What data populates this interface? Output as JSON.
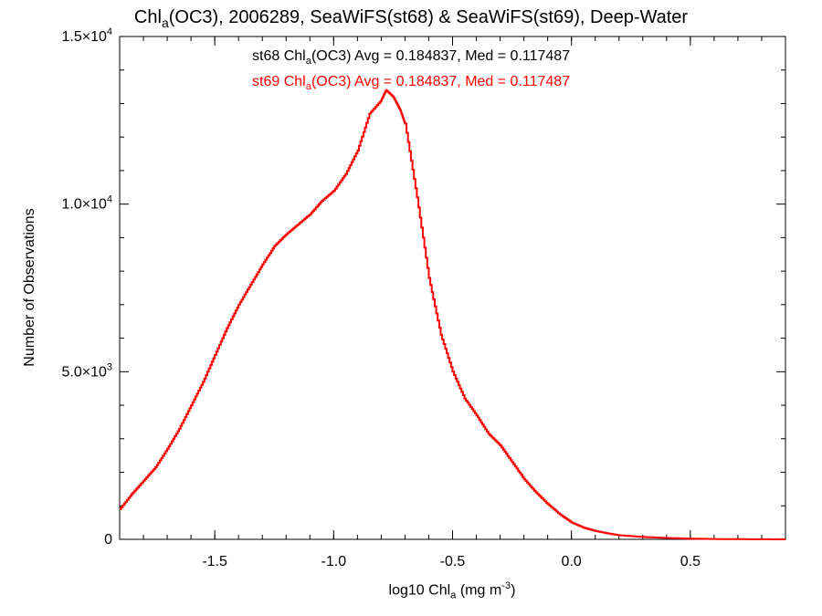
{
  "title": {
    "prefix": "Chl",
    "sub": "a",
    "rest": "(OC3), 2006289, SeaWiFS(st68) & SeaWiFS(st69), Deep-Water"
  },
  "annotations": [
    {
      "prefix": "st68 Chl",
      "sub": "a",
      "rest": "(OC3) Avg = 0.184837, Med = 0.117487",
      "color": "#000000"
    },
    {
      "prefix": "st69 Chl",
      "sub": "a",
      "rest": "(OC3) Avg = 0.184837, Med = 0.117487",
      "color": "#ff0000"
    }
  ],
  "axes": {
    "xlabel": {
      "prefix": "log10 Chl",
      "sub": "a",
      "middle": " (mg m",
      "sup": "-3",
      "suffix": ")"
    },
    "ylabel": "Number of Observations"
  },
  "chart_data": {
    "type": "line",
    "step": true,
    "xlim": [
      -1.9,
      0.9
    ],
    "ylim": [
      0,
      15000
    ],
    "xticks": [
      -1.5,
      -1.0,
      -0.5,
      0.0,
      0.5
    ],
    "xtick_labels": [
      "-1.5",
      "-1.0",
      "-0.5",
      "0.0",
      "0.5"
    ],
    "yticks": [
      {
        "value": 0,
        "mantissa": "0",
        "exp": ""
      },
      {
        "value": 5000,
        "mantissa": "5.0×10",
        "exp": "3"
      },
      {
        "value": 10000,
        "mantissa": "1.0×10",
        "exp": "4"
      },
      {
        "value": 15000,
        "mantissa": "1.5×10",
        "exp": "4"
      }
    ],
    "grid": false,
    "series": [
      {
        "name": "st69",
        "color": "#ff0000",
        "x": [
          -1.9,
          -1.85,
          -1.8,
          -1.75,
          -1.7,
          -1.65,
          -1.6,
          -1.55,
          -1.5,
          -1.45,
          -1.4,
          -1.35,
          -1.3,
          -1.25,
          -1.2,
          -1.15,
          -1.1,
          -1.05,
          -1.0,
          -0.95,
          -0.9,
          -0.85,
          -0.8,
          -0.78,
          -0.75,
          -0.72,
          -0.7,
          -0.65,
          -0.6,
          -0.55,
          -0.5,
          -0.45,
          -0.4,
          -0.35,
          -0.3,
          -0.25,
          -0.2,
          -0.15,
          -0.1,
          -0.05,
          0.0,
          0.05,
          0.1,
          0.15,
          0.2,
          0.3,
          0.4,
          0.5,
          0.6,
          0.7,
          0.8,
          0.9
        ],
        "y": [
          900,
          1350,
          1750,
          2150,
          2700,
          3300,
          4000,
          4700,
          5500,
          6300,
          7000,
          7600,
          8200,
          8750,
          9100,
          9400,
          9700,
          10100,
          10400,
          10900,
          11600,
          12700,
          13100,
          13400,
          13200,
          12800,
          12400,
          10200,
          7800,
          6100,
          5000,
          4200,
          3700,
          3150,
          2800,
          2300,
          1800,
          1400,
          1050,
          750,
          500,
          350,
          250,
          180,
          120,
          70,
          40,
          20,
          10,
          5,
          2,
          0
        ]
      }
    ]
  }
}
